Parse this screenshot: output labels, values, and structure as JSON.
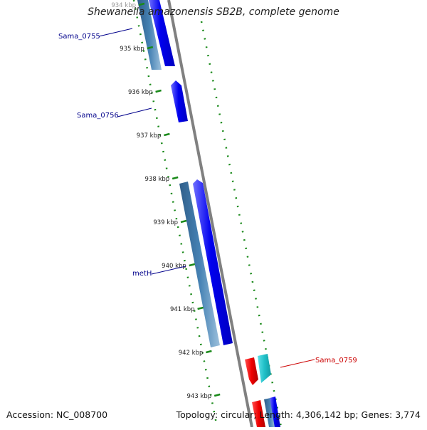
{
  "title": "Shewanella amazonensis SB2B, complete genome",
  "accession_text": "Accession: NC_008700",
  "summary_text": "Topology: circular; Length: 4,306,142 bp; Genes: 3,774",
  "ticks": [
    "934 kbp",
    "935 kbp",
    "936 kbp",
    "937 kbp",
    "938 kbp",
    "939 kbp",
    "940 kbp",
    "941 kbp",
    "942 kbp",
    "943 kbp"
  ],
  "gene_labels": {
    "sama_0755": "Sama_0755",
    "sama_0756": "Sama_0756",
    "meth": "metH",
    "sama_0759": "Sama_0759"
  },
  "colors": {
    "forward_cds": "#0000ee",
    "gene_steel": "#4682b4",
    "reverse_cds": "#ee0000",
    "reverse_other": "#20c0c8",
    "backbone": "#808080",
    "tick_green": "#1a8a1a",
    "label_blue": "#00008b",
    "label_red": "#cc0000"
  }
}
